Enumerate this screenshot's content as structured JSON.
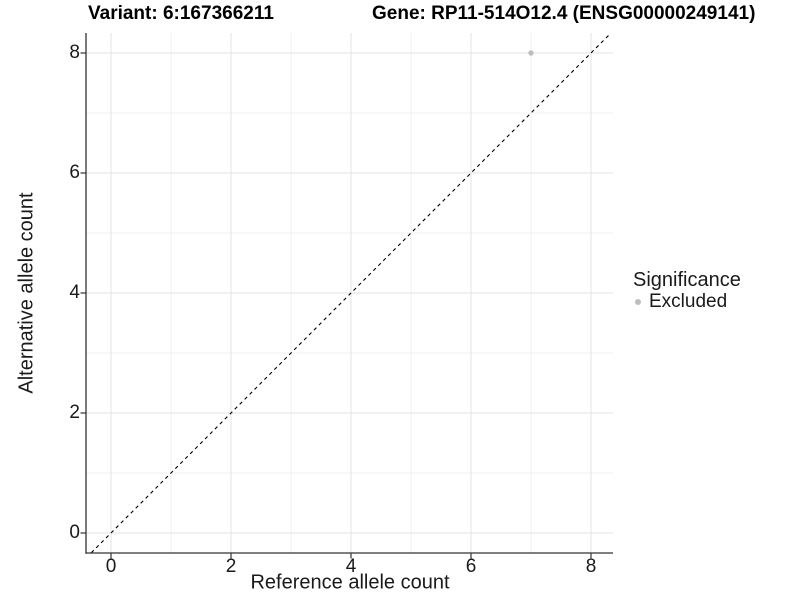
{
  "chart_data": {
    "type": "scatter",
    "titles": {
      "variant": "Variant: 6:167366211",
      "gene": "Gene: RP11-514O12.4 (ENSG00000249141)"
    },
    "xlabel": "Reference allele count",
    "ylabel": "Alternative allele count",
    "xlim": [
      -0.42,
      8.37
    ],
    "ylim": [
      -0.33,
      8.33
    ],
    "x_ticks": [
      0,
      2,
      4,
      6,
      8
    ],
    "y_ticks": [
      0,
      2,
      4,
      6,
      8
    ],
    "x_minor_ticks": [
      1,
      3,
      5,
      7
    ],
    "y_minor_ticks": [
      1,
      3,
      5,
      7
    ],
    "grid": true,
    "legend_position": "right",
    "identity_line": {
      "equation": "y = x",
      "style": "dashed",
      "color": "#000000"
    },
    "points": [
      {
        "x": 7,
        "y": 8,
        "series": "Excluded"
      }
    ],
    "legend": {
      "title": "Significance",
      "items": [
        {
          "label": "Excluded",
          "color": "#bebebe"
        }
      ]
    },
    "colors": {
      "point_excluded": "#bebebe",
      "grid_major": "#e3e3e3",
      "grid_minor": "#f0f0f0",
      "axis_line": "#333333",
      "text": "#1a1a1a"
    }
  }
}
